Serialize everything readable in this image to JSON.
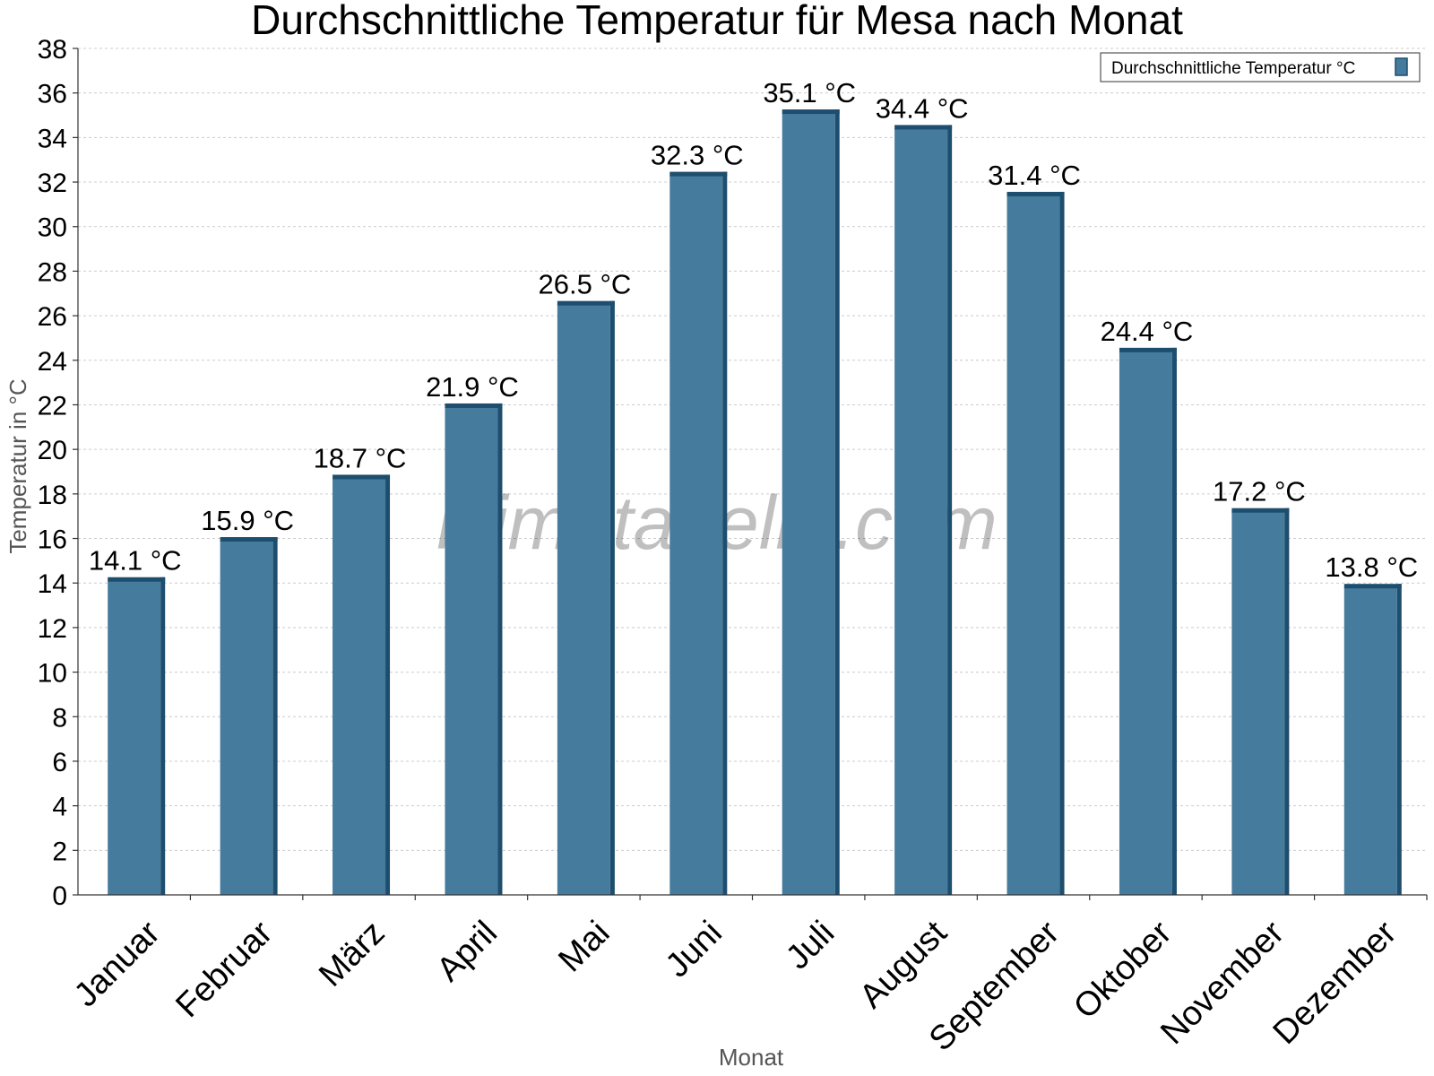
{
  "chart_data": {
    "type": "bar",
    "title": "Durchschnittliche Temperatur für Mesa nach Monat",
    "xlabel": "Monat",
    "ylabel": "Temperatur in °C",
    "categories": [
      "Januar",
      "Februar",
      "März",
      "April",
      "Mai",
      "Juni",
      "Juli",
      "August",
      "September",
      "Oktober",
      "November",
      "Dezember"
    ],
    "series": [
      {
        "name": "Durchschnittliche Temperatur °C",
        "values": [
          14.1,
          15.9,
          18.7,
          21.9,
          26.5,
          32.3,
          35.1,
          34.4,
          31.4,
          24.4,
          17.2,
          13.8
        ],
        "labels": [
          "14.1 °C",
          "15.9 °C",
          "18.7 °C",
          "21.9 °C",
          "26.5 °C",
          "32.3 °C",
          "35.1 °C",
          "34.4 °C",
          "31.4 °C",
          "24.4 °C",
          "17.2 °C",
          "13.8 °C"
        ],
        "color": "#457b9d",
        "edge_color": "#1d4e6e"
      }
    ],
    "ylim": [
      0,
      38
    ],
    "yticks": [
      0,
      2,
      4,
      6,
      8,
      10,
      12,
      14,
      16,
      18,
      20,
      22,
      24,
      26,
      28,
      30,
      32,
      34,
      36,
      38
    ],
    "grid": true,
    "legend_position": "top-right"
  },
  "watermark": "klimatabelle.com"
}
